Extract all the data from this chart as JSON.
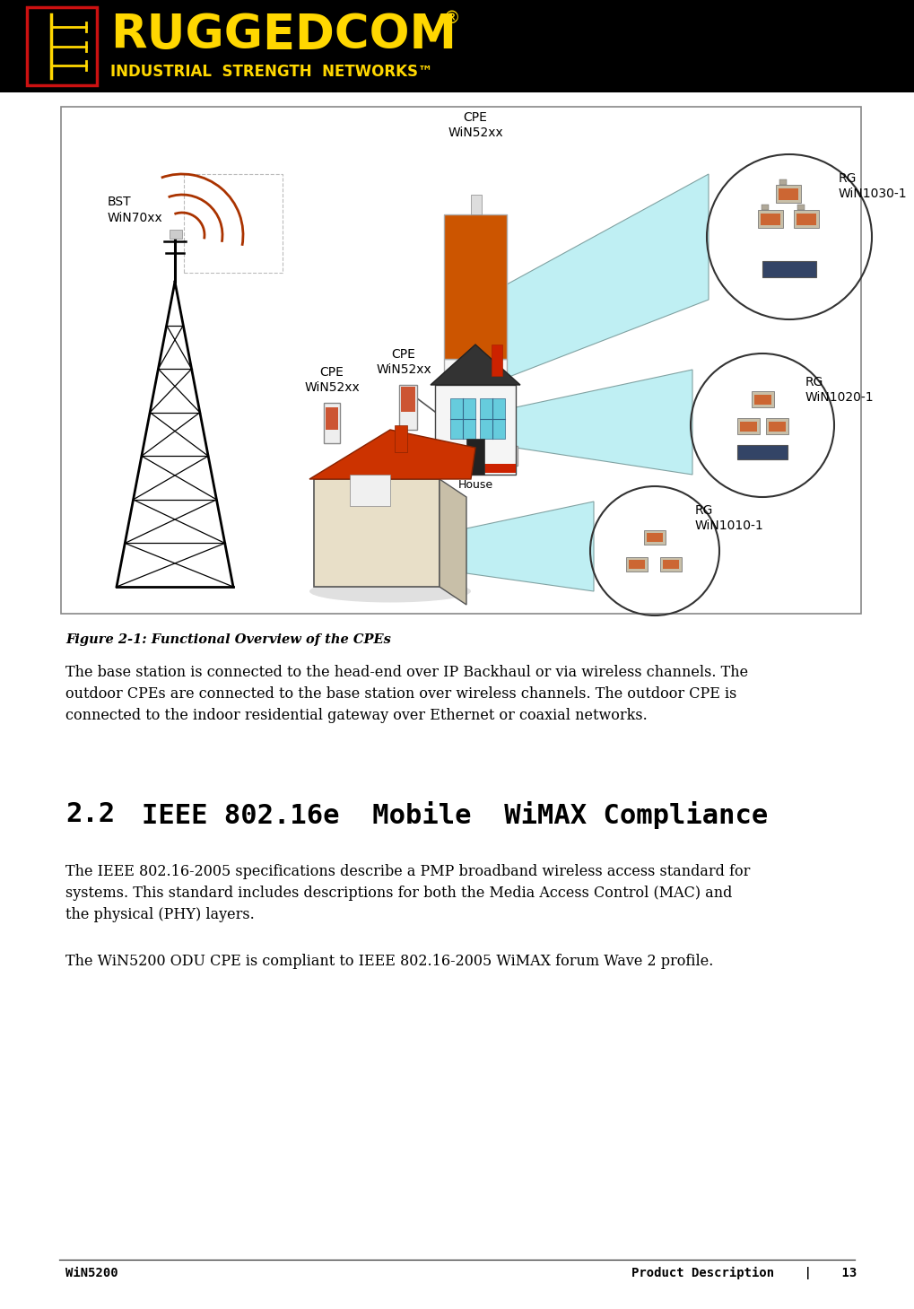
{
  "page_width": 10.19,
  "page_height": 14.59,
  "bg_color": "#ffffff",
  "header_bg": "#000000",
  "footer_left": "WiN5200",
  "footer_right": "Product Description    |    13",
  "footer_font_size": 10,
  "figure_caption": "Figure 2-1: Functional Overview of the CPEs",
  "body_text1_line1": "The base station is connected to the head-end over IP Backhaul or via wireless channels. The",
  "body_text1_line2": "outdoor CPEs are connected to the base station over wireless channels. The outdoor CPE is",
  "body_text1_line3": "connected to the indoor residential gateway over Ethernet or coaxial networks.",
  "section_num": "2.2",
  "section_title": "IEEE 802.16e  Mobile  WiMAX Compliance",
  "body_text2_line1": "The IEEE 802.16-2005 specifications describe a PMP broadband wireless access standard for",
  "body_text2_line2": "systems. This standard includes descriptions for both the Media Access Control (MAC) and",
  "body_text2_line3": "the physical (PHY) layers.",
  "body_text3": "The WiN5200 ODU CPE is compliant to IEEE 802.16-2005 WiMAX forum Wave 2 profile.",
  "label_bst": "BST\nWiN70xx",
  "label_cpe_top": "CPE\nWiN52xx",
  "label_cpe_mid": "CPE\nWiN52xx",
  "label_cpe_bot": "CPE\nWiN52xx",
  "label_rg1": "RG\nWiN1030-1",
  "label_rg2": "RG\nWiN1020-1",
  "label_rg3": "RG\nWiN1010-1",
  "label_house": "House"
}
